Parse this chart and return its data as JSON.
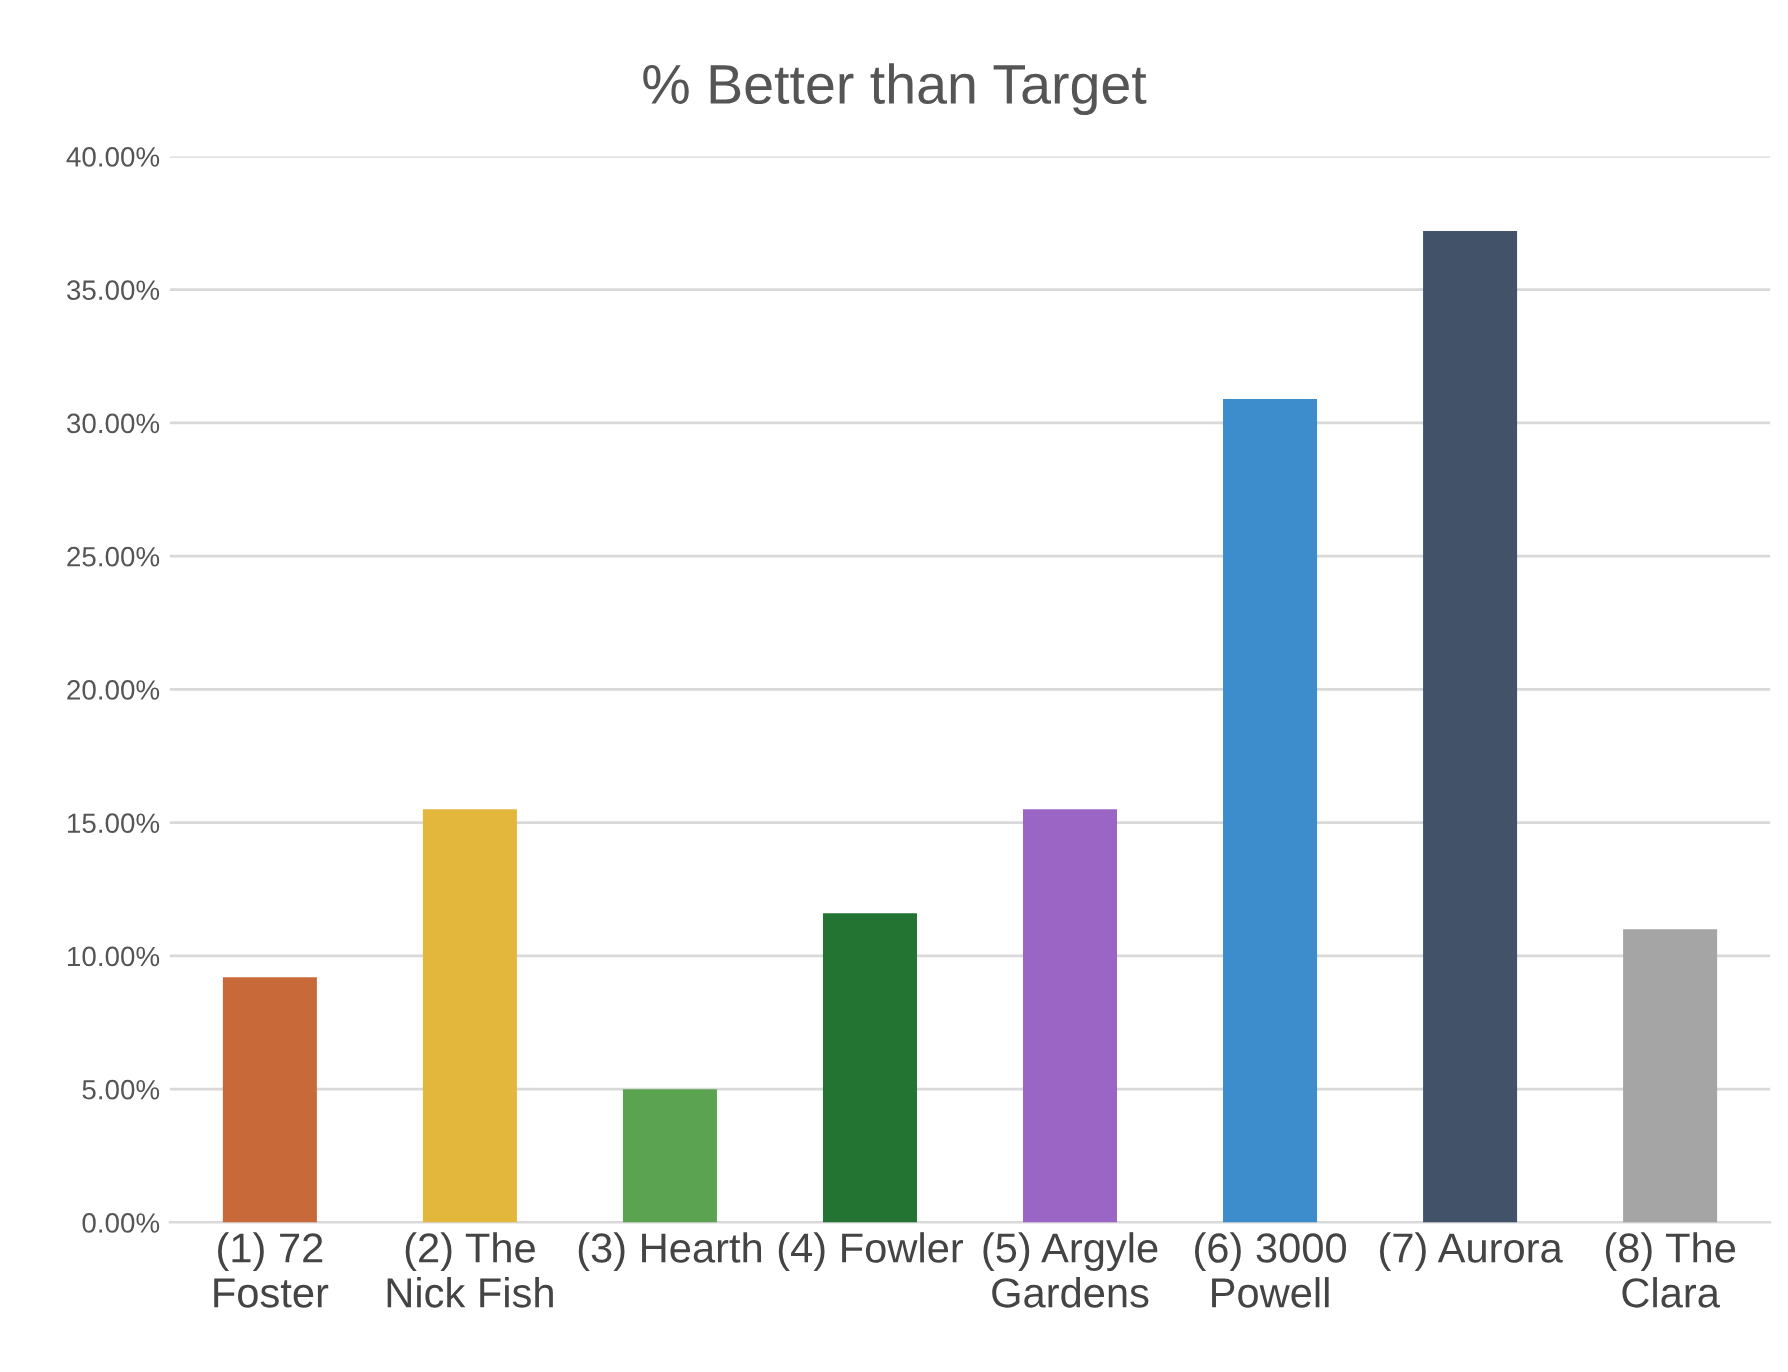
{
  "chart_data": {
    "type": "bar",
    "title": "% Better than Target",
    "categories": [
      "(1) 72\nFoster",
      "(2) The\nNick Fish",
      "(3) Hearth",
      "(4) Fowler",
      "(5) Argyle\nGardens",
      "(6) 3000\nPowell",
      "(7) Aurora",
      "(8) The\nClara"
    ],
    "values": [
      9.2,
      15.5,
      5.0,
      11.6,
      15.5,
      30.9,
      37.2,
      11.0
    ],
    "colors": [
      "#c8693a",
      "#e2b73c",
      "#5ba350",
      "#237333",
      "#9b65c6",
      "#3d8ccb",
      "#425369",
      "#a5a5a5"
    ],
    "ylim": [
      0,
      40
    ],
    "yticks": [
      {
        "value": 0,
        "label": "0.00%"
      },
      {
        "value": 5,
        "label": "5.00%"
      },
      {
        "value": 10,
        "label": "10.00%"
      },
      {
        "value": 15,
        "label": "15.00%"
      },
      {
        "value": 20,
        "label": "20.00%"
      },
      {
        "value": 25,
        "label": "25.00%"
      },
      {
        "value": 30,
        "label": "30.00%"
      },
      {
        "value": 35,
        "label": "35.00%"
      },
      {
        "value": 40,
        "label": "40.00%"
      }
    ],
    "grid": "y"
  }
}
